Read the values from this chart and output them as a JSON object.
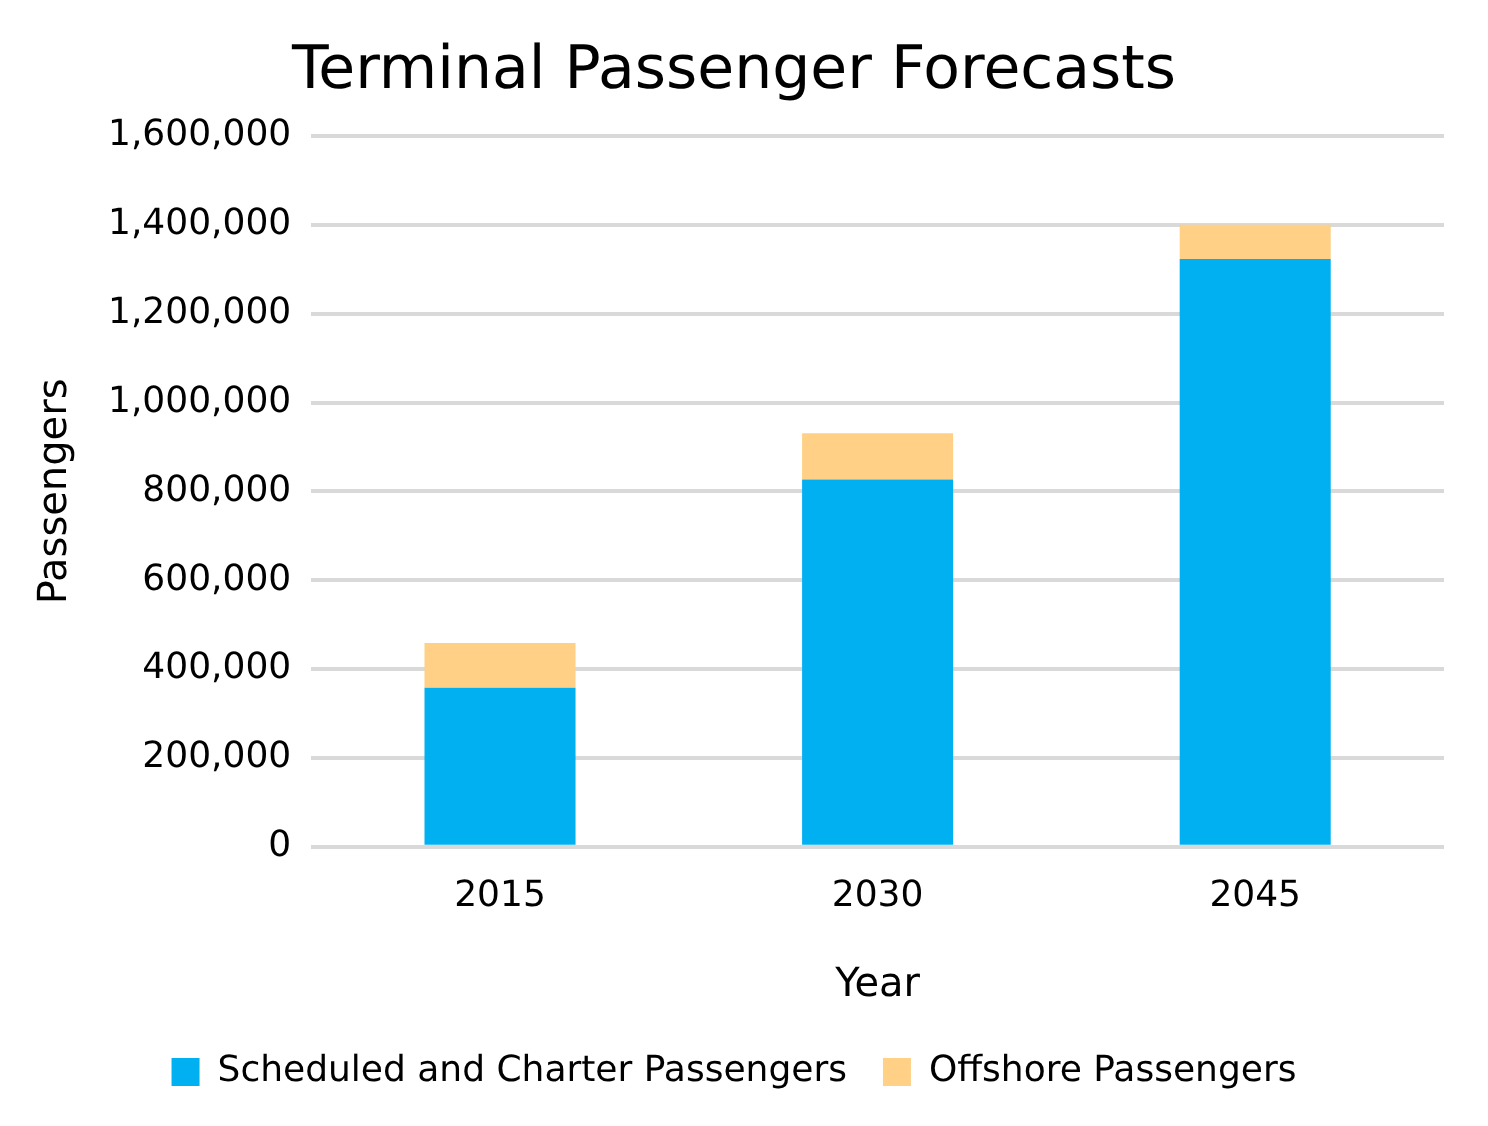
{
  "chart_data": {
    "type": "bar",
    "title": "Terminal Passenger Forecasts",
    "xlabel": "Year",
    "ylabel": "Passengers",
    "categories": [
      "2015",
      "2030",
      "2045"
    ],
    "stacked": true,
    "series": [
      {
        "name": "Scheduled and Charter Passengers",
        "color": "#00b0f0",
        "values": [
          358000,
          827000,
          1323000
        ]
      },
      {
        "name": "Offshore Passengers",
        "color": "#ffd085",
        "values": [
          101000,
          104000,
          77000
        ]
      }
    ],
    "ylim": [
      0,
      1600000
    ],
    "yticks": [
      0,
      {
        "value": 200000,
        "label": "200,000"
      },
      {
        "value": 400000,
        "label": "400,000"
      },
      {
        "value": 600000,
        "label": "600,000"
      },
      {
        "value": 800000,
        "label": "800,000"
      },
      {
        "value": 1000000,
        "label": "1,000,000"
      },
      {
        "value": 1200000,
        "label": "1,200,000"
      },
      {
        "value": 1400000,
        "label": "1,400,000"
      },
      {
        "value": 1600000,
        "label": "1,600,000"
      }
    ],
    "grid": "y",
    "legend": "bottom"
  }
}
